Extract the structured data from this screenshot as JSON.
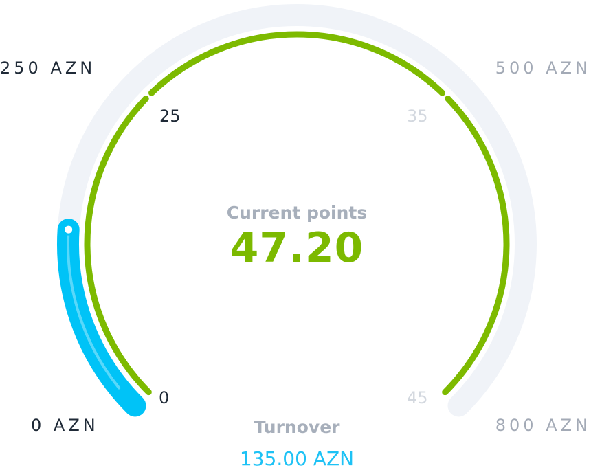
{
  "turnover_gauge": {
    "min_label": "0 AZN",
    "mid_label": "250 AZN",
    "upper_label": "500 AZN",
    "max_label": "800 AZN",
    "current": 135.0,
    "scale": [
      0,
      250,
      500,
      800
    ],
    "color": "#00c3f7",
    "track_color": "#f0f3f8"
  },
  "points_gauge": {
    "min_label": "0",
    "mid_label": "25",
    "upper_label": "35",
    "max_label": "45",
    "current": 47.2,
    "scale": [
      0,
      25,
      35,
      45
    ],
    "color": "#7dba00",
    "track_color": "#e6f4d4"
  },
  "points": {
    "caption": "Current points",
    "value": "47.20"
  },
  "turnover": {
    "caption": "Turnover",
    "value": "135.00 AZN"
  }
}
